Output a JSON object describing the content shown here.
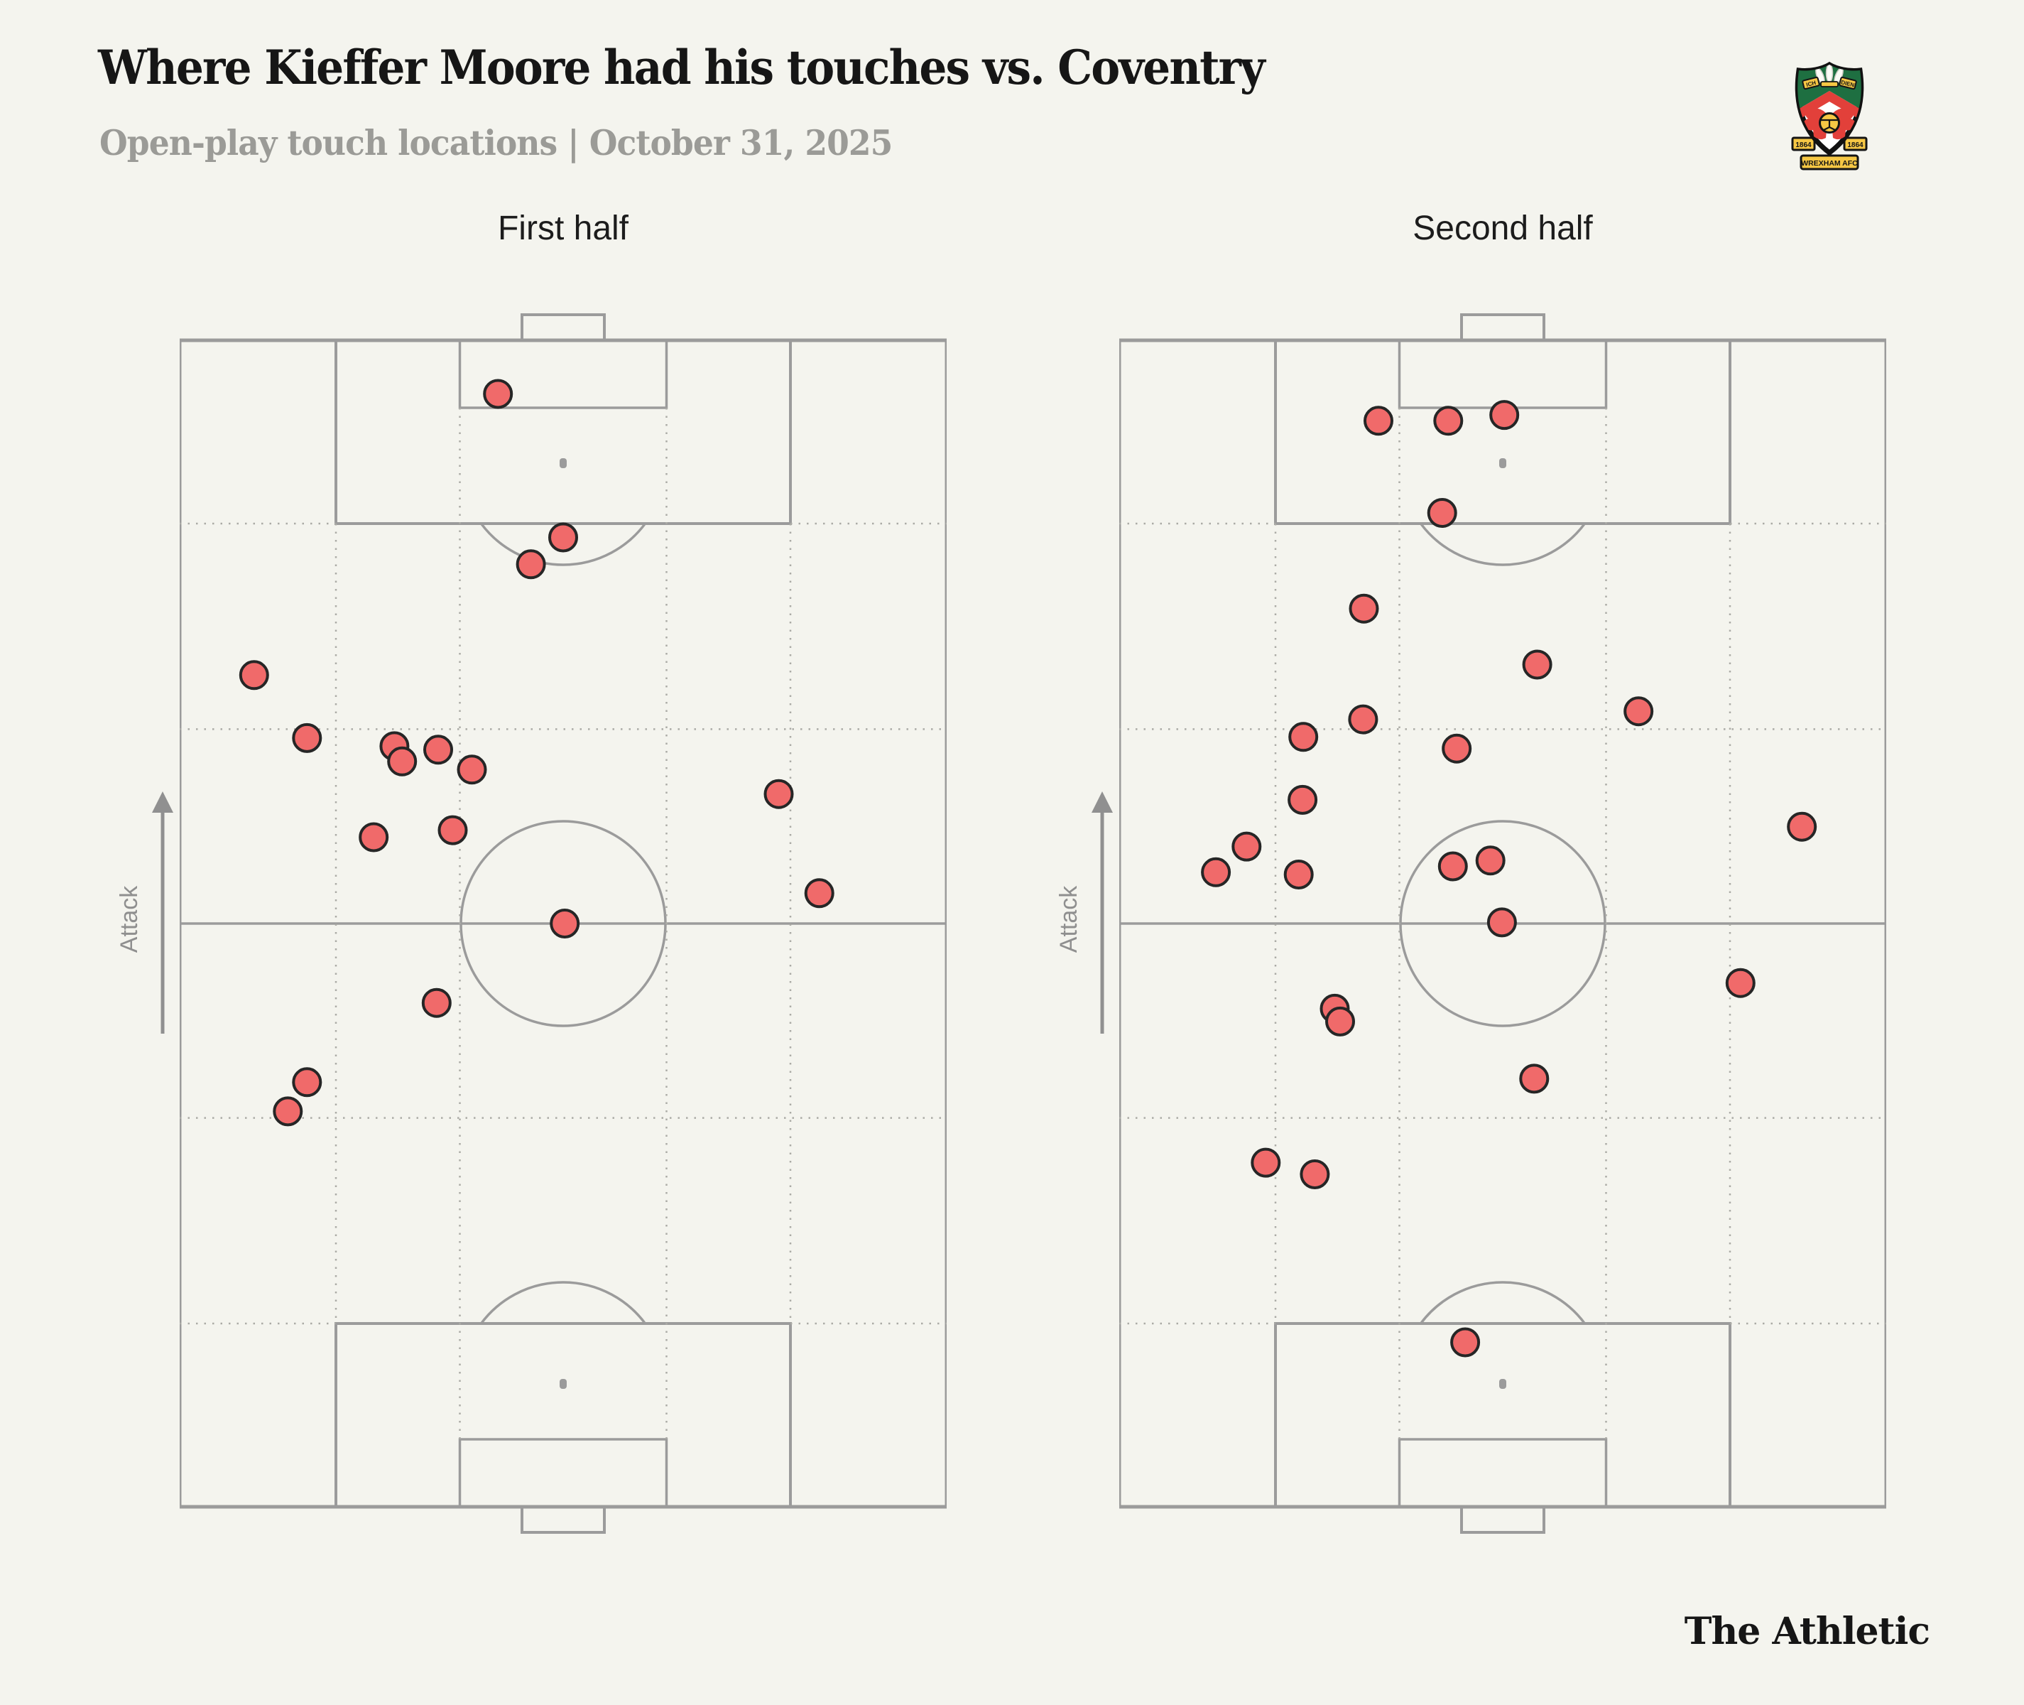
{
  "header": {
    "title": "Where Kieffer Moore had his touches vs. Coventry",
    "subtitle": "Open-play touch locations | October 31, 2025"
  },
  "badge": {
    "club": "Wrexham AFC",
    "motto_left": "ICH",
    "motto_right": "DIEN",
    "year_left": "1864",
    "year_right": "1864",
    "banner": "WREXHAM AFC"
  },
  "footer": {
    "brand": "The Athletic"
  },
  "colors": {
    "background": "#f4f4ee",
    "pitch_line": "#9b9b9b",
    "grid_dotted": "#ababa6",
    "touch_fill": "#f06a6a",
    "touch_stroke": "#262626",
    "subtitle_gray": "#9b9b97"
  },
  "chart_data": {
    "type": "scatter",
    "title": "Where Kieffer Moore had his touches vs. Coventry",
    "subtitle": "Open-play touch locations | October 31, 2025",
    "direction_label": "Attack",
    "coordinate_system": "percent of pitch; x 0=left touchline, 100=right; y 0=attacking goal line (top), 100=own goal line (bottom)",
    "legend_position": "none",
    "grid": "dotted channel and thirds lines",
    "pitches": [
      {
        "label": "First half",
        "touch_count": 17,
        "touches": [
          [
            41.5,
            4.6
          ],
          [
            50.0,
            16.9
          ],
          [
            45.8,
            19.2
          ],
          [
            9.7,
            28.7
          ],
          [
            16.6,
            34.1
          ],
          [
            28.0,
            34.8
          ],
          [
            29.0,
            36.1
          ],
          [
            33.7,
            35.1
          ],
          [
            38.1,
            36.8
          ],
          [
            78.1,
            38.9
          ],
          [
            25.3,
            42.6
          ],
          [
            35.6,
            42.0
          ],
          [
            83.4,
            47.4
          ],
          [
            50.2,
            50.0
          ],
          [
            33.5,
            56.8
          ],
          [
            16.6,
            63.6
          ],
          [
            14.1,
            66.1
          ]
        ]
      },
      {
        "label": "Second half",
        "touch_count": 25,
        "touches": [
          [
            33.8,
            6.9
          ],
          [
            42.9,
            6.9
          ],
          [
            50.2,
            6.4
          ],
          [
            42.1,
            14.8
          ],
          [
            31.9,
            23.0
          ],
          [
            54.5,
            27.8
          ],
          [
            67.7,
            31.8
          ],
          [
            31.8,
            32.5
          ],
          [
            24.0,
            34.0
          ],
          [
            44.0,
            35.0
          ],
          [
            23.9,
            39.4
          ],
          [
            89.0,
            41.7
          ],
          [
            16.6,
            43.4
          ],
          [
            12.6,
            45.6
          ],
          [
            23.4,
            45.8
          ],
          [
            43.5,
            45.1
          ],
          [
            48.4,
            44.6
          ],
          [
            49.9,
            49.9
          ],
          [
            81.0,
            55.1
          ],
          [
            28.1,
            57.3
          ],
          [
            28.8,
            58.4
          ],
          [
            54.1,
            63.3
          ],
          [
            19.1,
            70.5
          ],
          [
            25.5,
            71.5
          ],
          [
            45.1,
            85.9
          ]
        ]
      }
    ]
  }
}
